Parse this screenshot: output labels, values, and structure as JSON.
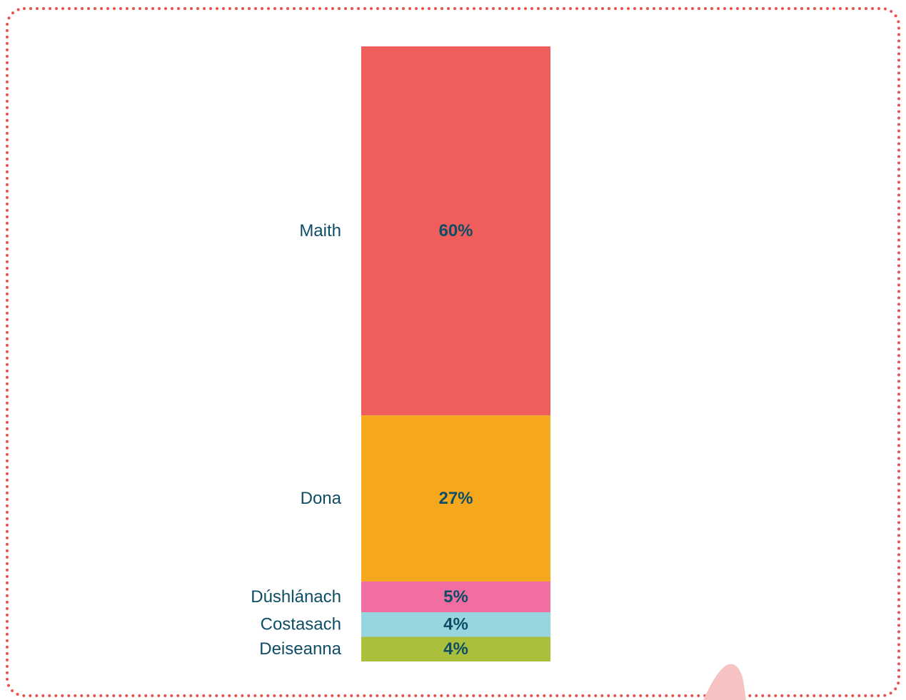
{
  "chart_data": {
    "type": "stacked_bar",
    "categories": [
      "Maith",
      "Dona",
      "Dúshlánach",
      "Costasach",
      "Deiseanna"
    ],
    "values": [
      60,
      27,
      5,
      4,
      4
    ],
    "value_labels": [
      "60%",
      "27%",
      "5%",
      "4%",
      "4%"
    ],
    "colors": [
      "#ef5e5b",
      "#f6a81d",
      "#f06ea2",
      "#97d6df",
      "#aabf3c"
    ]
  }
}
